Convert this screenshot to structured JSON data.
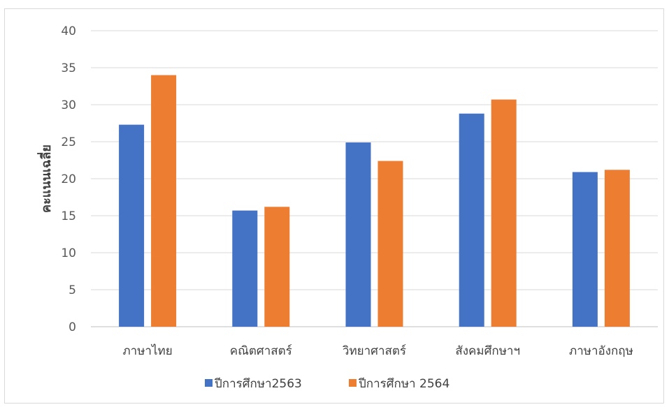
{
  "chart_data": {
    "type": "bar",
    "title": "",
    "xlabel": "",
    "ylabel": "คะแนนเฉลี่ย",
    "ylim": [
      0,
      40
    ],
    "yticks": [
      0,
      5,
      10,
      15,
      20,
      25,
      30,
      35,
      40
    ],
    "grid": true,
    "legend_position": "bottom",
    "categories": [
      "ภาษาไทย",
      "คณิตศาสตร์",
      "วิทยาศาสตร์",
      "สังคมศึกษาฯ",
      "ภาษาอังกฤษ"
    ],
    "series": [
      {
        "name": "ปีการศึกษา2563",
        "color": "#4472c4",
        "values": [
          27.3,
          15.7,
          24.9,
          28.8,
          20.9
        ]
      },
      {
        "name": "ปีการศึกษา 2564",
        "color": "#ed7d31",
        "values": [
          34.0,
          16.2,
          22.4,
          30.7,
          21.2
        ]
      }
    ]
  }
}
